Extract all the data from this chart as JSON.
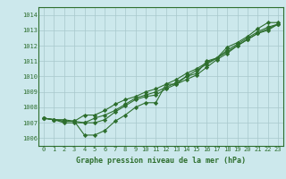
{
  "xlabel": "Graphe pression niveau de la mer (hPa)",
  "bg_color": "#cce8ec",
  "grid_color": "#a8c8cc",
  "line_color": "#2d6e2d",
  "marker": "D",
  "markersize": 2.2,
  "linewidth": 0.8,
  "x": [
    0,
    1,
    2,
    3,
    4,
    5,
    6,
    7,
    8,
    9,
    10,
    11,
    12,
    13,
    14,
    15,
    16,
    17,
    18,
    19,
    20,
    21,
    22,
    23
  ],
  "series": [
    [
      1007.3,
      1007.2,
      1007.2,
      1007.1,
      1006.2,
      1006.2,
      1006.5,
      1007.1,
      1007.5,
      1008.0,
      1008.3,
      1008.3,
      1009.5,
      1009.5,
      1010.0,
      1010.2,
      1011.0,
      1011.2,
      1011.9,
      1012.2,
      1012.6,
      1013.1,
      1013.5,
      1013.5
    ],
    [
      1007.3,
      1007.2,
      1007.1,
      1007.1,
      1007.0,
      1007.0,
      1007.2,
      1007.7,
      1008.1,
      1008.5,
      1008.7,
      1008.8,
      1009.2,
      1009.5,
      1009.8,
      1010.1,
      1010.6,
      1011.1,
      1011.5,
      1012.0,
      1012.4,
      1012.8,
      1013.1,
      1013.4
    ],
    [
      1007.3,
      1007.2,
      1007.0,
      1007.0,
      1007.0,
      1007.3,
      1007.5,
      1007.8,
      1008.2,
      1008.6,
      1008.8,
      1009.0,
      1009.3,
      1009.6,
      1010.0,
      1010.4,
      1010.8,
      1011.2,
      1011.7,
      1012.1,
      1012.5,
      1012.9,
      1013.2,
      1013.4
    ],
    [
      1007.3,
      1007.2,
      1007.1,
      1007.1,
      1007.5,
      1007.5,
      1007.8,
      1008.2,
      1008.5,
      1008.7,
      1009.0,
      1009.2,
      1009.5,
      1009.8,
      1010.2,
      1010.5,
      1010.9,
      1011.2,
      1011.6,
      1012.0,
      1012.4,
      1012.8,
      1013.0,
      1013.4
    ]
  ],
  "ylim": [
    1005.5,
    1014.5
  ],
  "yticks": [
    1006,
    1007,
    1008,
    1009,
    1010,
    1011,
    1012,
    1013,
    1014
  ],
  "xticks": [
    0,
    1,
    2,
    3,
    4,
    5,
    6,
    7,
    8,
    9,
    10,
    11,
    12,
    13,
    14,
    15,
    16,
    17,
    18,
    19,
    20,
    21,
    22,
    23
  ],
  "tick_fontsize": 5,
  "label_fontsize": 6,
  "label_fontweight": "bold",
  "spine_color": "#2d6e2d"
}
